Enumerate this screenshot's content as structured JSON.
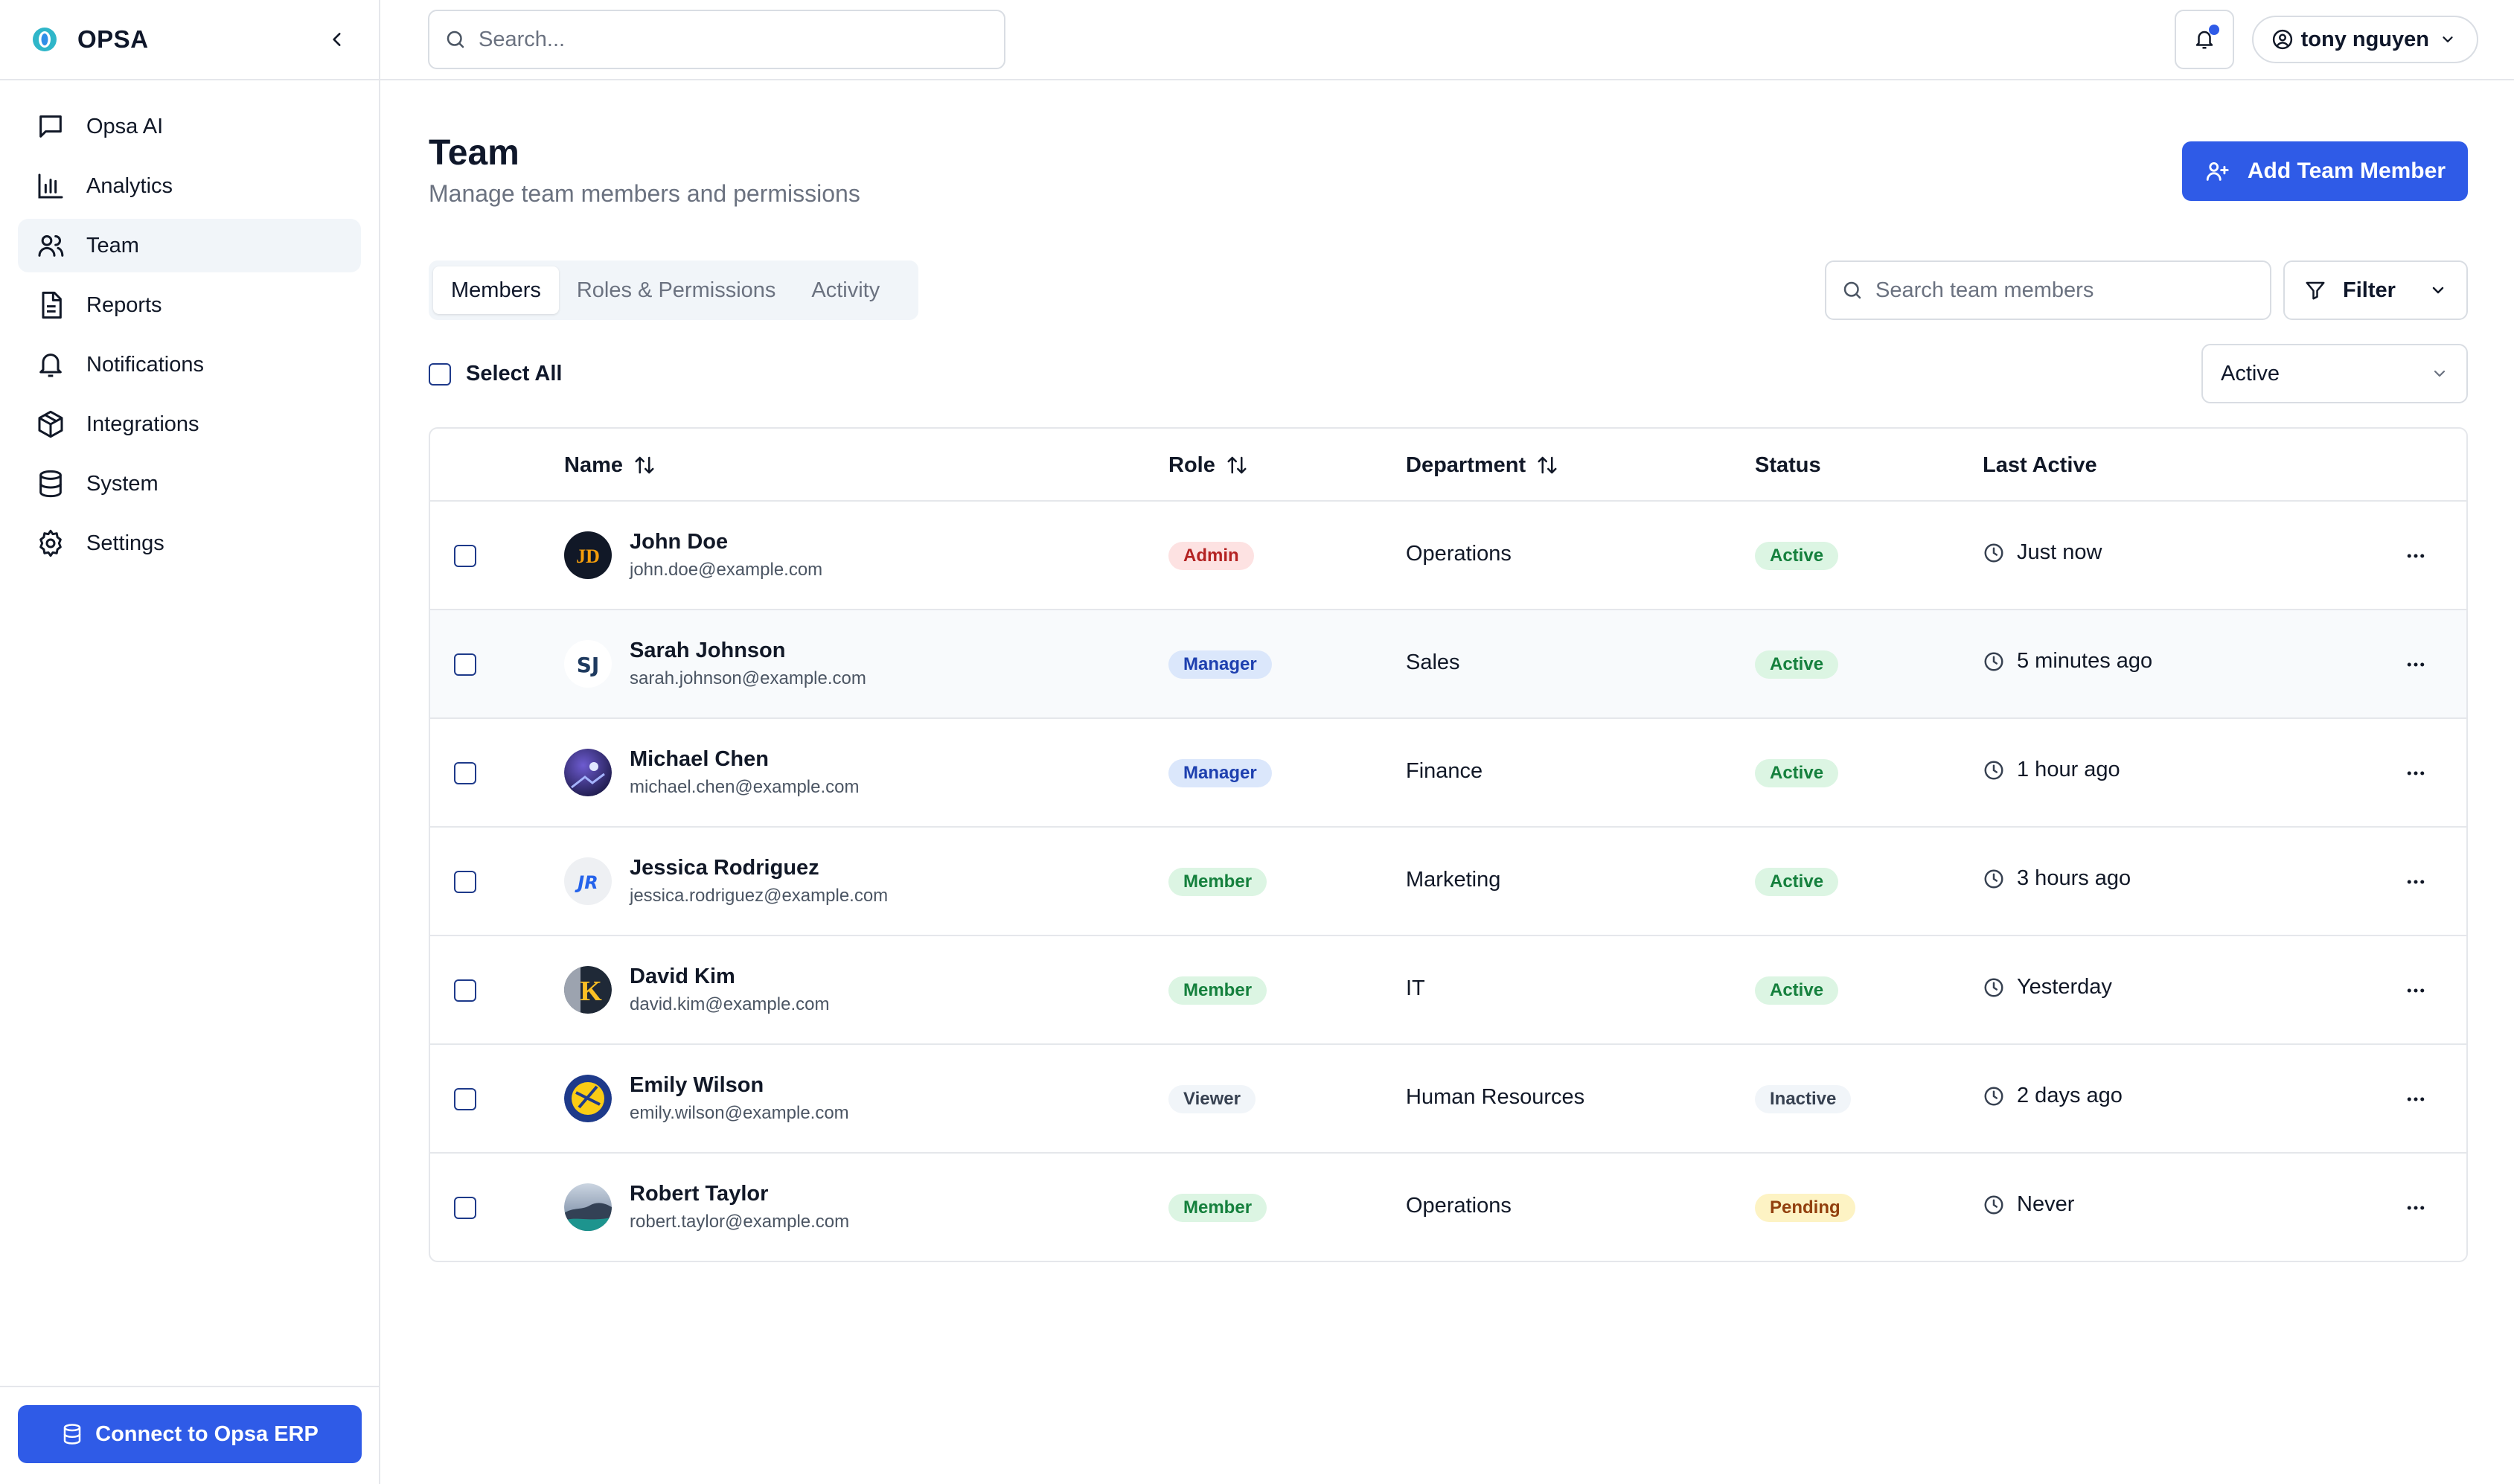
{
  "app": {
    "name": "OPSA"
  },
  "sidebar": {
    "items": [
      {
        "label": "Opsa AI",
        "icon": "message-square-icon"
      },
      {
        "label": "Analytics",
        "icon": "bar-chart-icon"
      },
      {
        "label": "Team",
        "icon": "users-icon",
        "active": true
      },
      {
        "label": "Reports",
        "icon": "file-text-icon"
      },
      {
        "label": "Notifications",
        "icon": "bell-icon"
      },
      {
        "label": "Integrations",
        "icon": "package-icon"
      },
      {
        "label": "System",
        "icon": "database-icon"
      },
      {
        "label": "Settings",
        "icon": "gear-icon"
      }
    ],
    "connect_label": "Connect to Opsa ERP"
  },
  "topbar": {
    "search_placeholder": "Search...",
    "user_name": "tony nguyen"
  },
  "page": {
    "title": "Team",
    "subtitle": "Manage team members and permissions",
    "add_label": "Add Team Member"
  },
  "tabs": [
    "Members",
    "Roles & Permissions",
    "Activity"
  ],
  "toolbar": {
    "search_placeholder": "Search team members",
    "filter_label": "Filter",
    "select_all_label": "Select All",
    "status_filter": "Active"
  },
  "table": {
    "headers": {
      "name": "Name",
      "role": "Role",
      "department": "Department",
      "status": "Status",
      "last_active": "Last Active"
    },
    "rows": [
      {
        "name": "John Doe",
        "email": "john.doe@example.com",
        "role": "Admin",
        "department": "Operations",
        "status": "Active",
        "last_active": "Just now",
        "avatar_initials": "JD"
      },
      {
        "name": "Sarah Johnson",
        "email": "sarah.johnson@example.com",
        "role": "Manager",
        "department": "Sales",
        "status": "Active",
        "last_active": "5 minutes ago",
        "avatar_initials": "SJ"
      },
      {
        "name": "Michael Chen",
        "email": "michael.chen@example.com",
        "role": "Manager",
        "department": "Finance",
        "status": "Active",
        "last_active": "1 hour ago"
      },
      {
        "name": "Jessica Rodriguez",
        "email": "jessica.rodriguez@example.com",
        "role": "Member",
        "department": "Marketing",
        "status": "Active",
        "last_active": "3 hours ago",
        "avatar_initials": "JR"
      },
      {
        "name": "David Kim",
        "email": "david.kim@example.com",
        "role": "Member",
        "department": "IT",
        "status": "Active",
        "last_active": "Yesterday",
        "avatar_initials": "K"
      },
      {
        "name": "Emily Wilson",
        "email": "emily.wilson@example.com",
        "role": "Viewer",
        "department": "Human Resources",
        "status": "Inactive",
        "last_active": "2 days ago"
      },
      {
        "name": "Robert Taylor",
        "email": "robert.taylor@example.com",
        "role": "Member",
        "department": "Operations",
        "status": "Pending",
        "last_active": "Never"
      }
    ]
  },
  "colors": {
    "accent": "#2f5be7",
    "border": "#e5e7eb",
    "muted": "#6b7280"
  }
}
